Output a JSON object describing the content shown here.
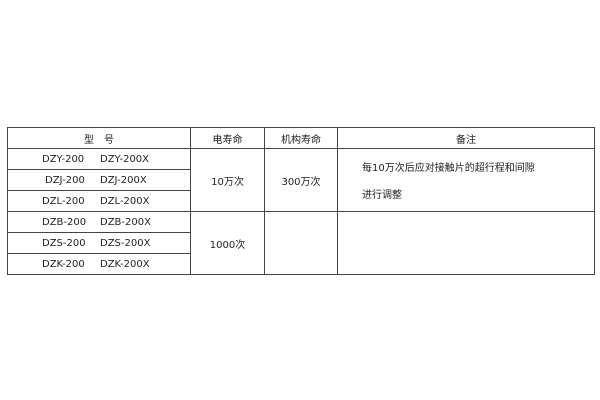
{
  "table": {
    "headers": [
      "型　号",
      "电寿命",
      "机构寿命",
      "备注"
    ],
    "models": [
      [
        "DZY-200",
        "DZY-200X"
      ],
      [
        "DZJ-200",
        "DZJ-200X"
      ],
      [
        "DZL-200",
        "DZL-200X"
      ],
      [
        "DZB-200",
        "DZB-200X"
      ],
      [
        "DZS-200",
        "DZS-200X"
      ],
      [
        "DZK-200",
        "DZK-200X"
      ]
    ],
    "groups": [
      {
        "electrical_life": "10万次",
        "mechanical_life": "300万次",
        "note_lines": [
          "每10万次后应对接触片的超行程和间隙",
          "进行调整"
        ]
      },
      {
        "electrical_life": "1000次",
        "mechanical_life": "",
        "note_lines": []
      }
    ]
  }
}
